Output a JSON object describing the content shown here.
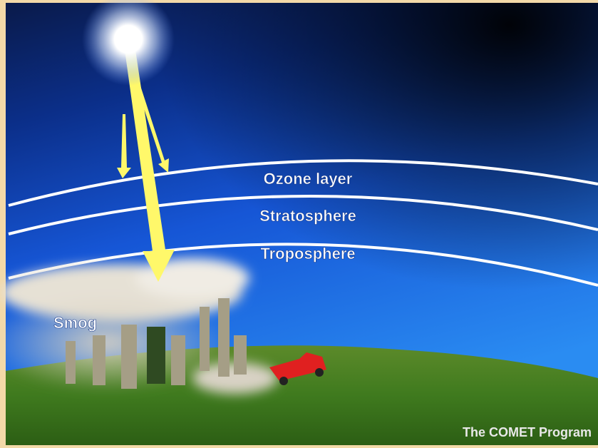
{
  "labels": {
    "ozone_layer": "Ozone layer",
    "stratosphere": "Stratosphere",
    "troposphere": "Troposphere",
    "smog": "Smog",
    "credit": "The COMET Program"
  }
}
